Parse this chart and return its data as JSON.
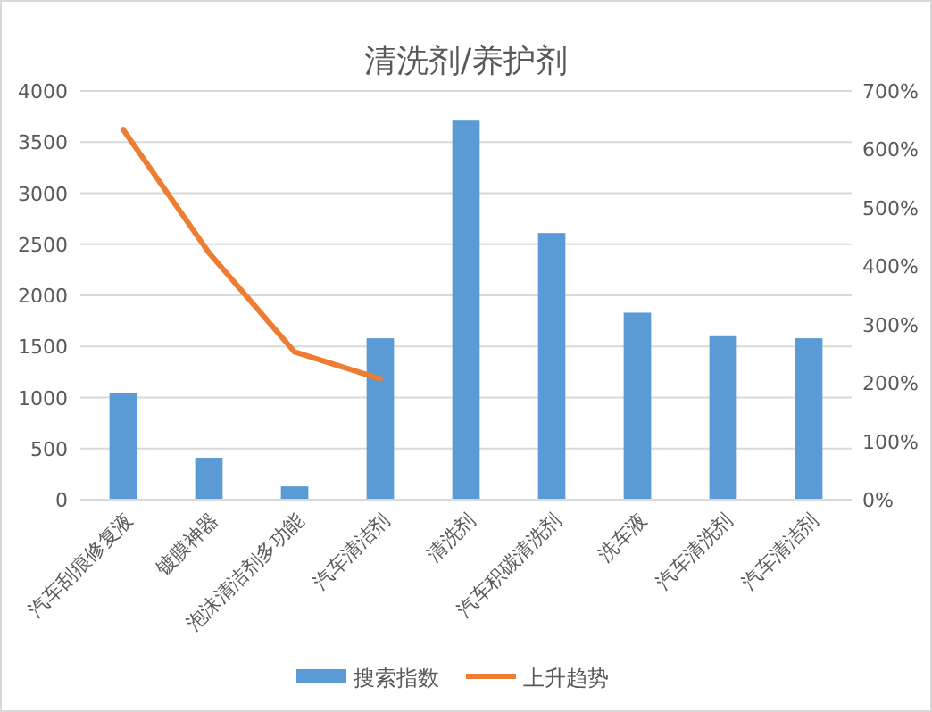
{
  "chart_data": {
    "type": "bar",
    "title": "清洗剂/养护剂",
    "categories": [
      "汽车刮痕修复液",
      "镀膜神器",
      "泡沫清洁剂多功能",
      "汽车清洁剂",
      "清洗剂",
      "汽车积碳清洗剂",
      "洗车液",
      "汽车清洗剂",
      "汽车清洁剂"
    ],
    "series": [
      {
        "name": "搜索指数",
        "color": "#5b9bd5",
        "values": [
          1040,
          410,
          130,
          1580,
          3710,
          2610,
          1830,
          1600,
          1580
        ]
      },
      {
        "name": "上升趋势",
        "type": "line",
        "axis": "y2",
        "color": "#ed7d31",
        "values": [
          634,
          423,
          253,
          207,
          null,
          null,
          null,
          null,
          null
        ]
      }
    ],
    "ylim": [
      0,
      4000
    ],
    "yticks": [
      0,
      500,
      1000,
      1500,
      2000,
      2500,
      3000,
      3500,
      4000
    ],
    "y2lim": [
      0,
      700
    ],
    "y2ticks": [
      {
        "value": 0,
        "label": "0%"
      },
      {
        "value": 100,
        "label": "100%"
      },
      {
        "value": 200,
        "label": "200%"
      },
      {
        "value": 300,
        "label": "300%"
      },
      {
        "value": 400,
        "label": "400%"
      },
      {
        "value": 500,
        "label": "500%"
      },
      {
        "value": 600,
        "label": "600%"
      },
      {
        "value": 700,
        "label": "700%"
      }
    ],
    "grid": "y",
    "legend": "bottom",
    "marker": "none"
  }
}
